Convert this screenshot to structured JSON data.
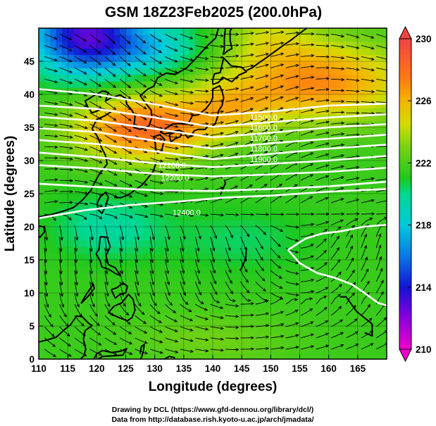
{
  "chart_data": {
    "type": "heatmap",
    "title": "GSM 18Z23Feb2025 (200.0hPa)",
    "xlabel": "Longitude (degrees)",
    "ylabel": "Latitude  (degrees)",
    "xlim": [
      110,
      170
    ],
    "ylim": [
      0,
      50
    ],
    "x_ticks": [
      "110",
      "115",
      "120",
      "125",
      "130",
      "135",
      "140",
      "145",
      "150",
      "155",
      "160",
      "165"
    ],
    "y_ticks": [
      "0",
      "5",
      "10",
      "15",
      "20",
      "25",
      "30",
      "35",
      "40",
      "45"
    ],
    "colorbar": {
      "min": 210,
      "max": 230,
      "ticks": [
        "210",
        "214",
        "218",
        "222",
        "226",
        "230"
      ],
      "stops": [
        {
          "v": 210,
          "color": "#ee00cc"
        },
        {
          "v": 212,
          "color": "#8a00dd"
        },
        {
          "v": 214,
          "color": "#1414d2"
        },
        {
          "v": 216,
          "color": "#0a78e6"
        },
        {
          "v": 218,
          "color": "#00cbdd"
        },
        {
          "v": 220,
          "color": "#00d890"
        },
        {
          "v": 221,
          "color": "#1ec81e"
        },
        {
          "v": 223,
          "color": "#78d214"
        },
        {
          "v": 224.5,
          "color": "#d2dc00"
        },
        {
          "v": 226,
          "color": "#f5b400"
        },
        {
          "v": 227.5,
          "color": "#ff7814"
        },
        {
          "v": 230,
          "color": "#ee4444"
        }
      ]
    },
    "contour_labels": [
      {
        "text": "11500.0",
        "x": 148.8,
        "y": 36.6
      },
      {
        "text": "11600.0",
        "x": 148.8,
        "y": 35.0
      },
      {
        "text": "11700.0",
        "x": 148.8,
        "y": 33.4
      },
      {
        "text": "11800.0",
        "x": 148.8,
        "y": 31.8
      },
      {
        "text": "11900.0",
        "x": 148.8,
        "y": 30.2
      },
      {
        "text": "12100.0",
        "x": 133.0,
        "y": 29.3
      },
      {
        "text": "12200.0",
        "x": 133.5,
        "y": 27.4
      },
      {
        "text": "12400.0",
        "x": 135.5,
        "y": 22.2
      }
    ]
  },
  "footer": {
    "line1": "Drawing by DCL (https://www.gfd-dennou.org/library/dcl/)",
    "line2": "Data from http://database.rish.kyoto-u.ac.jp/arch/jmadata/"
  }
}
